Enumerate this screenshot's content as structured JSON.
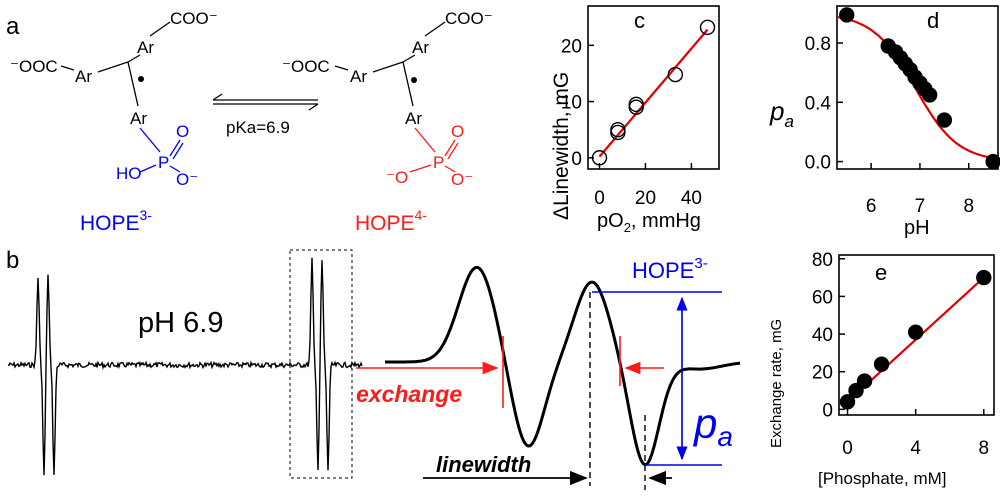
{
  "panels": {
    "a": {
      "letter": "a",
      "left_structure": {
        "ooc": "⁻OOC",
        "ar": "Ar",
        "coo": "COO⁻",
        "ho": "HO",
        "p": "P",
        "o": "O",
        "o_minus": "O⁻"
      },
      "right_structure": {
        "ooc": "⁻OOC",
        "ar": "Ar",
        "coo": "COO⁻",
        "o_minus": "⁻O",
        "p": "P",
        "o": "O",
        "o_minus2": "O⁻"
      },
      "equilibrium": "pKa=6.9",
      "left_name": "HOPE",
      "left_charge": "3-",
      "right_name": "HOPE",
      "right_charge": "4-",
      "colors": {
        "left": "#0000ee",
        "right": "#ff1a1a"
      }
    },
    "b": {
      "letter": "b",
      "ph_label": "pH 6.9",
      "hope_label": "HOPE",
      "hope_charge": "3-",
      "exchange": "exchange",
      "linewidth": "linewidth",
      "pa_main": "p",
      "pa_sub": "a"
    },
    "c": {
      "letter": "c"
    },
    "d": {
      "letter": "d"
    },
    "e": {
      "letter": "e"
    }
  },
  "chart_data": [
    {
      "panel": "c",
      "type": "scatter",
      "x": [
        0,
        8,
        8,
        16,
        16,
        33,
        47
      ],
      "y": [
        0,
        5,
        4.5,
        9.5,
        9,
        14.8,
        23.2
      ],
      "fit": {
        "type": "line",
        "x": [
          0,
          47
        ],
        "y": [
          0.2,
          22.8
        ]
      },
      "xlabel": "pO2, mmHg",
      "ylabel": "ΔLinewidth, mG",
      "xlim": [
        -5,
        52
      ],
      "ylim": [
        -2,
        27
      ],
      "xticks": [
        0,
        20,
        40
      ],
      "yticks": [
        0,
        10,
        20
      ],
      "marker": "open-circle"
    },
    {
      "panel": "d",
      "type": "scatter",
      "x": [
        5.5,
        6.35,
        6.5,
        6.6,
        6.7,
        6.8,
        6.9,
        7.0,
        7.1,
        7.2,
        7.5,
        8.5
      ],
      "y": [
        0.99,
        0.78,
        0.74,
        0.7,
        0.66,
        0.62,
        0.57,
        0.53,
        0.49,
        0.45,
        0.28,
        0.0
      ],
      "fit": {
        "type": "sigmoid",
        "pKa": 6.9
      },
      "xlabel": "pH",
      "ylabel": "pa",
      "xlim": [
        5.3,
        8.6
      ],
      "ylim": [
        -0.05,
        1.05
      ],
      "xticks": [
        6,
        7,
        8
      ],
      "yticks": [
        0.0,
        0.4,
        0.8
      ],
      "ytick_labels": [
        "0.0",
        "0.4",
        "0.8"
      ],
      "marker": "filled-circle"
    },
    {
      "panel": "e",
      "type": "scatter",
      "x": [
        0,
        0.5,
        1,
        2,
        4,
        8
      ],
      "y": [
        4,
        10,
        15,
        24,
        41,
        70
      ],
      "fit": {
        "type": "line",
        "x": [
          0,
          8
        ],
        "y": [
          4,
          70
        ]
      },
      "xlabel": "[Phosphate, mM]",
      "ylabel": "Exchange rate, mG",
      "xlim": [
        -0.5,
        8.6
      ],
      "ylim": [
        -3,
        82
      ],
      "xticks": [
        0,
        4,
        8
      ],
      "yticks": [
        0,
        20,
        40,
        60,
        80
      ],
      "marker": "filled-circle"
    }
  ]
}
